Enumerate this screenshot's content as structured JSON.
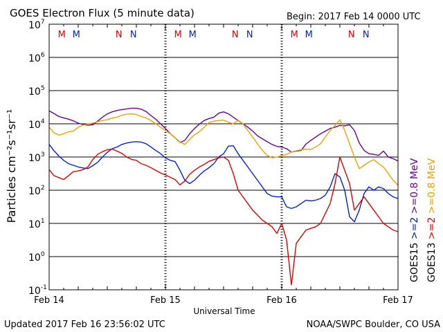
{
  "chart_data": {
    "type": "line",
    "title": "GOES Electron Flux (5 minute data)",
    "begin": "Begin: 2017 Feb 14 0000 UTC",
    "xlabel": "Universal Time",
    "ylabel": "Particles cm⁻²s⁻¹sr⁻¹",
    "updated": "Updated 2017 Feb 16 23:56:02 UTC",
    "credit": "NOAA/SWPC Boulder, CO USA",
    "x_range_hours": [
      0,
      72
    ],
    "y_range_exp": [
      -1,
      7
    ],
    "yscale": "log",
    "y_ticks": [
      {
        "exp": 7,
        "base": "10",
        "sup": "7"
      },
      {
        "exp": 6,
        "base": "10",
        "sup": "6"
      },
      {
        "exp": 5,
        "base": "10",
        "sup": "5"
      },
      {
        "exp": 4,
        "base": "10",
        "sup": "4"
      },
      {
        "exp": 3,
        "base": "10",
        "sup": "3"
      },
      {
        "exp": 2,
        "base": "10",
        "sup": "2"
      },
      {
        "exp": 1,
        "base": "10",
        "sup": "1"
      },
      {
        "exp": 0,
        "base": "10",
        "sup": "0"
      },
      {
        "exp": -1,
        "base": "10",
        "sup": "-1"
      }
    ],
    "x_ticks": [
      {
        "h": 0,
        "label": "Feb 14"
      },
      {
        "h": 24,
        "label": "Feb 15"
      },
      {
        "h": 48,
        "label": "Feb 16"
      },
      {
        "h": 72,
        "label": "Feb 17"
      }
    ],
    "threshold_exp": 3,
    "markers": [
      {
        "h": 2.6,
        "label": "M",
        "color": "#e00000"
      },
      {
        "h": 5.6,
        "label": "M",
        "color": "#0020e0"
      },
      {
        "h": 14.4,
        "label": "N",
        "color": "#e00000"
      },
      {
        "h": 17.4,
        "label": "N",
        "color": "#0020e0"
      },
      {
        "h": 26.6,
        "label": "M",
        "color": "#e00000"
      },
      {
        "h": 29.6,
        "label": "M",
        "color": "#0020e0"
      },
      {
        "h": 38.4,
        "label": "N",
        "color": "#e00000"
      },
      {
        "h": 41.4,
        "label": "N",
        "color": "#0020e0"
      },
      {
        "h": 50.6,
        "label": "M",
        "color": "#e00000"
      },
      {
        "h": 53.6,
        "label": "M",
        "color": "#0020e0"
      },
      {
        "h": 62.4,
        "label": "N",
        "color": "#e00000"
      },
      {
        "h": 65.4,
        "label": "N",
        "color": "#0020e0"
      }
    ],
    "legend": [
      {
        "text": "GOES15",
        "color": "#000000"
      },
      {
        "text": ">=2",
        "color": "#0020e0"
      },
      {
        "text": ">=0.8 MeV",
        "color": "#6a0099"
      },
      {
        "text": "GOES13",
        "color": "#000000"
      },
      {
        "text": ">=2",
        "color": "#e00000"
      },
      {
        "text": ">=0.8 MeV",
        "color": "#f0a000"
      }
    ],
    "series": [
      {
        "name": "GOES15 >=0.8 MeV",
        "color": "#6a0099",
        "x": [
          0,
          1,
          2,
          3,
          4,
          5,
          6,
          7,
          8,
          9,
          10,
          11,
          12,
          13,
          14,
          15,
          16,
          17,
          18,
          19,
          20,
          21,
          22,
          23,
          24,
          25,
          26,
          27,
          28,
          29,
          30,
          31,
          32,
          33,
          34,
          35,
          36,
          37,
          38,
          39,
          40,
          41,
          42,
          43,
          44,
          45,
          46,
          47,
          48,
          49,
          50,
          51,
          52,
          53,
          54,
          55,
          56,
          57,
          58,
          59,
          60,
          61,
          62,
          63,
          64,
          65,
          66,
          67,
          68,
          69,
          70,
          71,
          72
        ],
        "y": [
          4.39,
          4.31,
          4.22,
          4.18,
          4.14,
          4.09,
          4.02,
          3.98,
          3.96,
          3.97,
          4.08,
          4.2,
          4.3,
          4.36,
          4.4,
          4.43,
          4.45,
          4.47,
          4.47,
          4.44,
          4.37,
          4.25,
          4.14,
          4.0,
          3.86,
          3.7,
          3.58,
          3.44,
          3.5,
          3.7,
          3.86,
          3.99,
          4.1,
          4.16,
          4.2,
          4.32,
          4.36,
          4.3,
          4.2,
          4.1,
          4.0,
          3.9,
          3.78,
          3.64,
          3.55,
          3.46,
          3.38,
          3.32,
          3.3,
          3.25,
          3.15,
          3.18,
          3.2,
          3.39,
          3.5,
          3.6,
          3.7,
          3.78,
          3.86,
          3.9,
          3.95,
          3.94,
          3.97,
          3.8,
          3.42,
          3.2,
          3.1,
          3.08,
          3.05,
          3.18,
          3.0,
          2.95,
          2.88
        ]
      },
      {
        "name": "GOES13 >=0.8 MeV",
        "color": "#f0a000",
        "x": [
          0,
          1,
          2,
          3,
          4,
          5,
          6,
          7,
          8,
          9,
          10,
          11,
          12,
          13,
          14,
          15,
          16,
          17,
          18,
          19,
          20,
          21,
          22,
          23,
          24,
          25,
          26,
          27,
          28,
          29,
          30,
          31,
          32,
          33,
          34,
          35,
          36,
          37,
          38,
          39,
          40,
          41,
          42,
          43,
          44,
          45,
          46,
          47,
          48,
          49,
          50,
          51,
          52,
          53,
          54,
          55,
          56,
          57,
          58,
          59,
          60,
          61,
          62,
          63,
          64,
          65,
          66,
          67,
          68,
          69,
          70,
          71,
          72
        ],
        "y": [
          3.9,
          3.73,
          3.66,
          3.7,
          3.76,
          3.78,
          3.9,
          3.96,
          4.0,
          4.02,
          4.06,
          4.1,
          4.12,
          4.17,
          4.2,
          4.26,
          4.29,
          4.3,
          4.28,
          4.22,
          4.18,
          4.1,
          4.0,
          3.9,
          3.8,
          3.7,
          3.58,
          3.45,
          3.38,
          3.53,
          3.67,
          3.76,
          3.9,
          4.04,
          4.08,
          4.1,
          4.11,
          4.05,
          4.0,
          4.11,
          4.0,
          3.8,
          3.6,
          3.4,
          3.2,
          3.05,
          2.98,
          3.0,
          3.04,
          3.08,
          3.15,
          3.19,
          3.22,
          3.24,
          3.23,
          3.3,
          3.4,
          3.6,
          3.8,
          3.95,
          4.12,
          3.8,
          3.4,
          3.0,
          2.65,
          2.75,
          2.85,
          2.92,
          2.8,
          2.7,
          2.5,
          2.3,
          2.15
        ]
      },
      {
        "name": "GOES15 >=2 MeV",
        "color": "#0020e0",
        "x": [
          0,
          1,
          2,
          3,
          4,
          5,
          6,
          7,
          8,
          9,
          10,
          11,
          12,
          13,
          14,
          15,
          16,
          17,
          18,
          19,
          20,
          21,
          22,
          23,
          24,
          25,
          26,
          27,
          28,
          29,
          30,
          31,
          32,
          33,
          34,
          35,
          36,
          37,
          38,
          39,
          40,
          41,
          42,
          43,
          44,
          45,
          46,
          47,
          48,
          49,
          50,
          51,
          52,
          53,
          54,
          55,
          56,
          57,
          58,
          59,
          60,
          61,
          62,
          63,
          64,
          65,
          66,
          67,
          68,
          69,
          70,
          71,
          72
        ],
        "y": [
          3.38,
          3.19,
          3.03,
          2.9,
          2.8,
          2.75,
          2.7,
          2.67,
          2.65,
          2.74,
          2.84,
          3.0,
          3.14,
          3.25,
          3.3,
          3.38,
          3.42,
          3.45,
          3.46,
          3.45,
          3.4,
          3.3,
          3.2,
          3.1,
          2.97,
          2.9,
          2.86,
          2.6,
          2.3,
          2.2,
          2.3,
          2.45,
          2.58,
          2.68,
          2.8,
          3.0,
          3.1,
          3.33,
          3.34,
          3.1,
          2.9,
          2.7,
          2.5,
          2.3,
          2.1,
          1.9,
          1.82,
          1.8,
          1.8,
          1.5,
          1.45,
          1.5,
          1.6,
          1.7,
          1.68,
          1.7,
          1.75,
          1.85,
          2.1,
          2.5,
          2.4,
          2.0,
          1.2,
          1.05,
          1.4,
          1.9,
          2.1,
          2.0,
          2.1,
          2.05,
          1.9,
          1.8,
          1.75
        ]
      },
      {
        "name": "GOES13 >=2 MeV",
        "color": "#e00000",
        "x": [
          0,
          1,
          2,
          3,
          4,
          5,
          6,
          7,
          8,
          9,
          10,
          11,
          12,
          13,
          14,
          15,
          16,
          17,
          18,
          19,
          20,
          21,
          22,
          23,
          24,
          25,
          26,
          27,
          28,
          29,
          30,
          31,
          32,
          33,
          34,
          35,
          36,
          37,
          38,
          39,
          40,
          41,
          42,
          43,
          44,
          45,
          46,
          47,
          48,
          49,
          50,
          51,
          52,
          53,
          54,
          55,
          56,
          57,
          58,
          59,
          60,
          61,
          62,
          63,
          64,
          65,
          66,
          67,
          68,
          69,
          70,
          71,
          72
        ],
        "y": [
          2.62,
          2.44,
          2.38,
          2.32,
          2.44,
          2.56,
          2.58,
          2.62,
          2.7,
          2.92,
          3.08,
          3.16,
          3.22,
          3.24,
          3.18,
          3.11,
          3.0,
          2.93,
          2.9,
          2.8,
          2.75,
          2.68,
          2.6,
          2.52,
          2.46,
          2.39,
          2.32,
          2.16,
          2.28,
          2.48,
          2.6,
          2.7,
          2.78,
          2.87,
          2.92,
          2.98,
          3.0,
          2.9,
          2.5,
          2.0,
          1.8,
          1.6,
          1.4,
          1.25,
          1.1,
          1.0,
          0.9,
          0.7,
          1.0,
          0.5,
          -0.85,
          0.4,
          0.6,
          0.8,
          0.85,
          0.9,
          1.0,
          1.3,
          1.6,
          2.2,
          3.0,
          2.6,
          2.2,
          1.4,
          1.6,
          1.8,
          1.6,
          1.4,
          1.2,
          1.0,
          0.9,
          0.8,
          0.75
        ]
      }
    ]
  }
}
